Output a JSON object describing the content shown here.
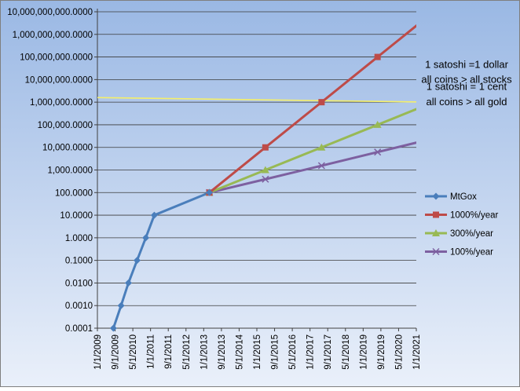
{
  "chart_data": {
    "type": "line",
    "y_scale": "log",
    "ylim": [
      0.0001,
      10000000000
    ],
    "xlim": [
      "1/1/2009",
      "5/1/2021"
    ],
    "grid": {
      "horizontal": true,
      "vertical": false
    },
    "legend_position": "right",
    "y_ticks": [
      {
        "value": 0.0001,
        "label": "0.0001"
      },
      {
        "value": 0.001,
        "label": "0.0010"
      },
      {
        "value": 0.01,
        "label": "0.0100"
      },
      {
        "value": 0.1,
        "label": "0.1000"
      },
      {
        "value": 1,
        "label": "1.0000"
      },
      {
        "value": 10,
        "label": "10.0000"
      },
      {
        "value": 100,
        "label": "100.0000"
      },
      {
        "value": 1000,
        "label": "1,000.0000"
      },
      {
        "value": 10000,
        "label": "10,000.0000"
      },
      {
        "value": 100000,
        "label": "100,000.0000"
      },
      {
        "value": 1000000,
        "label": "1,000,000.0000"
      },
      {
        "value": 10000000,
        "label": "10,000,000.0000"
      },
      {
        "value": 100000000,
        "label": "100,000,000.0000"
      },
      {
        "value": 1000000000,
        "label": "1,000,000,000.0000"
      },
      {
        "value": 10000000000,
        "label": "10,000,000,000.0000"
      }
    ],
    "x_ticks": [
      "1/1/2009",
      "9/1/2009",
      "5/1/2010",
      "1/1/2011",
      "9/1/2011",
      "5/1/2012",
      "1/1/2013",
      "9/1/2013",
      "5/1/2014",
      "1/1/2015",
      "9/1/2015",
      "5/1/2016",
      "1/1/2017",
      "9/1/2017",
      "5/1/2018",
      "1/1/2019",
      "9/1/2019",
      "5/1/2020",
      "1/1/2021"
    ],
    "series": [
      {
        "name": "MtGox",
        "color": "#4a7ebb",
        "marker": "diamond",
        "points": [
          [
            "8/15/2009",
            0.0001
          ],
          [
            "12/1/2009",
            0.001
          ],
          [
            "3/15/2010",
            0.01
          ],
          [
            "7/15/2010",
            0.1
          ],
          [
            "11/15/2010",
            1
          ],
          [
            "3/15/2011",
            10
          ],
          [
            "5/1/2013",
            100
          ]
        ]
      },
      {
        "name": "1000%/year",
        "color": "#be4b48",
        "marker": "square",
        "points": [
          [
            "5/1/2013",
            100
          ],
          [
            "7/1/2015",
            10000
          ],
          [
            "9/1/2017",
            1000000
          ],
          [
            "11/1/2019",
            100000000
          ],
          [
            "1/1/2022",
            10000000000
          ]
        ]
      },
      {
        "name": "300%/year",
        "color": "#98b954",
        "marker": "triangle",
        "points": [
          [
            "5/1/2013",
            100
          ],
          [
            "7/1/2015",
            1000
          ],
          [
            "9/1/2017",
            10000
          ],
          [
            "11/1/2019",
            100000
          ],
          [
            "1/1/2022",
            1000000
          ]
        ]
      },
      {
        "name": "100%/year",
        "color": "#7d60a0",
        "marker": "x",
        "points": [
          [
            "5/1/2013",
            100
          ],
          [
            "7/1/2015",
            390
          ],
          [
            "9/1/2017",
            1550
          ],
          [
            "11/1/2019",
            6200
          ],
          [
            "1/1/2022",
            25000
          ]
        ]
      }
    ],
    "reference_line": {
      "color": "#f5ef6a",
      "points": [
        [
          "1/1/2009",
          1600000
        ],
        [
          "1/1/2022",
          1000000
        ]
      ]
    },
    "annotations": [
      {
        "text": "1 satoshi  =1 dollar",
        "anchor_value": 45000000
      },
      {
        "text": "all coins > all stocks",
        "anchor_value": 10000000
      },
      {
        "text": "1 satoshi  =  1 cent",
        "anchor_value": 4800000
      },
      {
        "text": "all coins > all gold",
        "anchor_value": 1000000
      }
    ]
  }
}
